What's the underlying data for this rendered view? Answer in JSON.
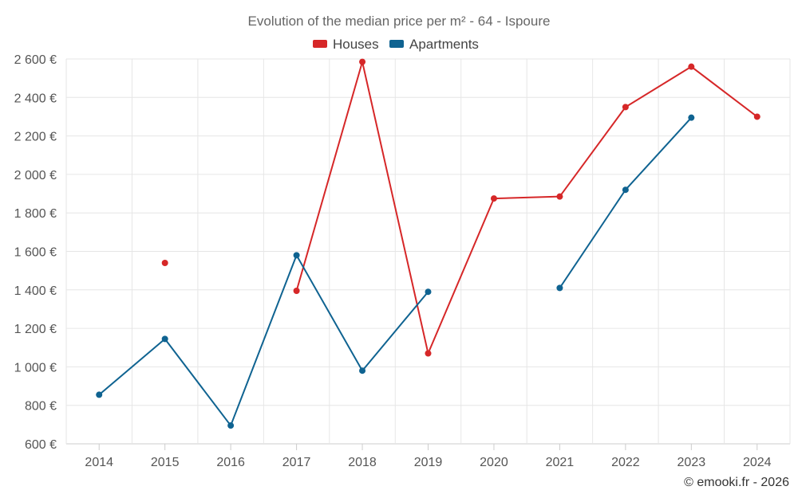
{
  "chart_data": {
    "type": "line",
    "title": "Evolution of the median price per m² - 64 - Ispoure",
    "categories": [
      "2014",
      "2015",
      "2016",
      "2017",
      "2018",
      "2019",
      "2020",
      "2021",
      "2022",
      "2023",
      "2024"
    ],
    "ylim": [
      600,
      2600
    ],
    "yticks": [
      600,
      800,
      1000,
      1200,
      1400,
      1600,
      1800,
      2000,
      2200,
      2400,
      2600
    ],
    "ytick_labels": [
      "600 €",
      "800 €",
      "1 000 €",
      "1 200 €",
      "1 400 €",
      "1 600 €",
      "1 800 €",
      "2 000 €",
      "2 200 €",
      "2 400 €",
      "2 600 €"
    ],
    "grid": true,
    "legend_position": "top-center",
    "series": [
      {
        "name": "Houses",
        "color": "#d62728",
        "values": [
          null,
          1540,
          null,
          1395,
          2585,
          1070,
          1875,
          1885,
          2350,
          2560,
          2300
        ]
      },
      {
        "name": "Apartments",
        "color": "#0f6391",
        "values": [
          855,
          1145,
          695,
          1580,
          980,
          1390,
          null,
          1410,
          1920,
          2295,
          null
        ]
      }
    ]
  },
  "credit": "© emooki.fr - 2026"
}
